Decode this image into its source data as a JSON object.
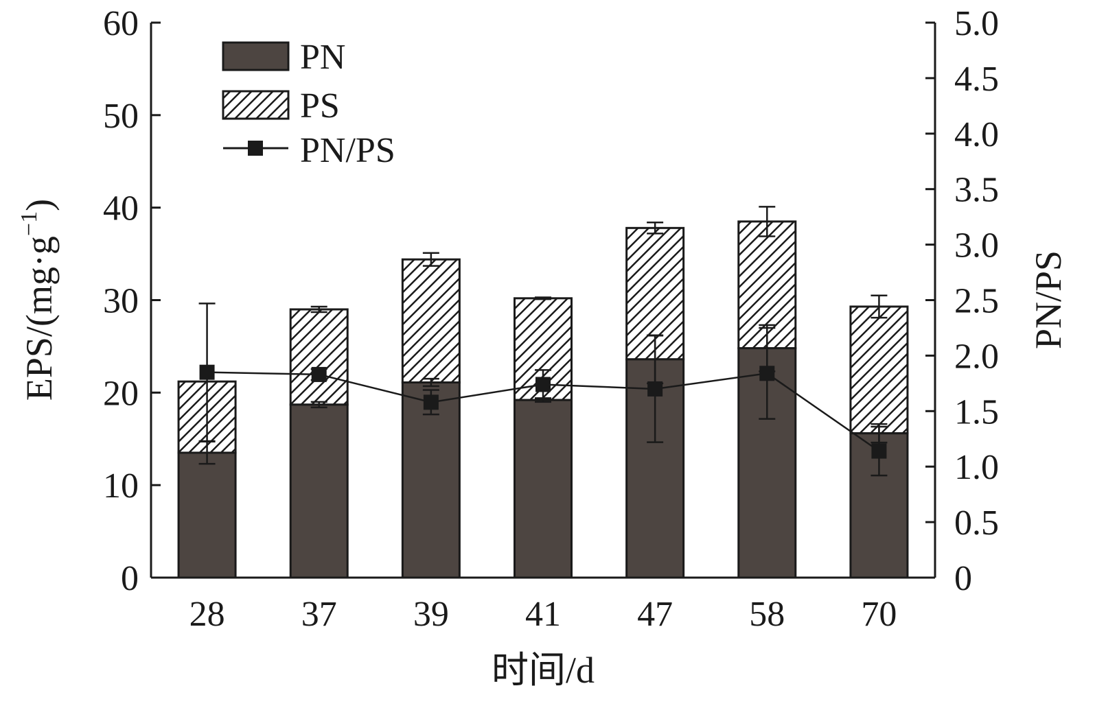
{
  "chart_data": {
    "type": "bar",
    "stacked": true,
    "categories": [
      "28",
      "37",
      "39",
      "41",
      "47",
      "58",
      "70"
    ],
    "xlabel": "时间/d",
    "ylabel": "EPS/(mg·g",
    "ylabel_sup": "−1",
    "ylabel_close": ")",
    "y2label": "PN/PS",
    "ylim": [
      0,
      60
    ],
    "y2lim": [
      0,
      5.0
    ],
    "yticks": [
      "0",
      "10",
      "20",
      "30",
      "40",
      "50",
      "60"
    ],
    "y2ticks": [
      "0",
      "0.5",
      "1.0",
      "1.5",
      "2.0",
      "2.5",
      "3.0",
      "3.5",
      "4.0",
      "4.5",
      "5.0"
    ],
    "series": [
      {
        "name": "PN",
        "kind": "bar",
        "pattern": "solid-dark",
        "values": [
          13.5,
          18.7,
          21.1,
          19.2,
          23.6,
          24.8,
          15.6
        ],
        "error": [
          1.2,
          0.3,
          0.4,
          0.2,
          2.6,
          2.5,
          1.0
        ]
      },
      {
        "name": "PS",
        "kind": "bar",
        "pattern": "hatched",
        "values": [
          7.7,
          10.3,
          13.3,
          11.0,
          14.2,
          13.7,
          13.7
        ],
        "error": [
          0,
          0.3,
          0.7,
          0.1,
          0.6,
          1.6,
          1.2
        ]
      },
      {
        "name": "PN/PS",
        "kind": "line",
        "axis": "right",
        "marker": "square",
        "values": [
          1.85,
          1.83,
          1.58,
          1.74,
          1.7,
          1.84,
          1.14
        ],
        "error": [
          0.62,
          0.05,
          0.11,
          0.13,
          0.48,
          0.41,
          0.22
        ]
      }
    ],
    "legend_position": "top-left",
    "grid": false,
    "colors": {
      "bar_fill": "#4d4541",
      "hatch_line": "#1a1a1a",
      "axis": "#1a1a1a"
    }
  }
}
